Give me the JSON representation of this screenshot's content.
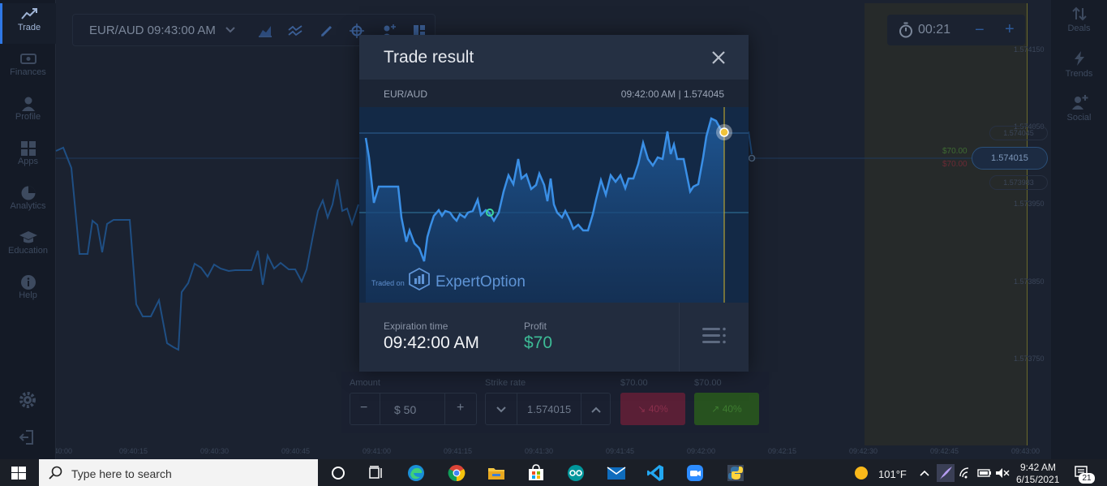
{
  "sidebar": {
    "items": [
      {
        "label": "Trade",
        "icon": "chart-trend-icon"
      },
      {
        "label": "Finances",
        "icon": "wallet-icon"
      },
      {
        "label": "Profile",
        "icon": "user-icon"
      },
      {
        "label": "Apps",
        "icon": "grid-icon"
      },
      {
        "label": "Analytics",
        "icon": "pie-chart-icon"
      },
      {
        "label": "Education",
        "icon": "graduation-cap-icon"
      },
      {
        "label": "Help",
        "icon": "info-icon"
      }
    ]
  },
  "rightbar": {
    "items": [
      {
        "label": "Deals",
        "icon": "sort-arrows-icon"
      },
      {
        "label": "Trends",
        "icon": "lightning-icon"
      },
      {
        "label": "Social",
        "icon": "add-user-icon"
      }
    ]
  },
  "toolbar": {
    "asset": "EUR/AUD 09:43:00 AM"
  },
  "timer": {
    "value": "00:21",
    "minus": "−",
    "plus": "+"
  },
  "price_axis": [
    "1.574150",
    "1.574050",
    "1.573950",
    "1.573850",
    "1.573750"
  ],
  "time_axis": [
    "09:40:00",
    "09:40:15",
    "09:40:30",
    "09:40:45",
    "09:41:00",
    "09:41:15",
    "09:41:30",
    "09:41:45",
    "09:42:00",
    "09:42:15",
    "09:42:30",
    "09:42:45",
    "09:43:00"
  ],
  "price_side": {
    "current": "1.574015",
    "upper_pill": "1.574045",
    "lower_pill": "1.573983",
    "green_amount": "$70.00",
    "red_amount": "$70.00"
  },
  "trade_panel": {
    "amount_label": "Amount",
    "amount_value": "$ 50",
    "strike_label": "Strike rate",
    "strike_value": "1.574015",
    "down_payout_label": "$70.00",
    "up_payout_label": "$70.00",
    "down_percent": "40%",
    "up_percent": "40%",
    "minus": "−",
    "plus": "+"
  },
  "modal": {
    "title": "Trade result",
    "asset": "EUR/AUD",
    "time_price": "09:42:00 AM | 1.574045",
    "traded_on": "Traded on",
    "brand": "ExpertOption",
    "expiration_label": "Expiration time",
    "expiration_value": "09:42:00 AM",
    "profit_label": "Profit",
    "profit_value": "$70"
  },
  "taskbar": {
    "search_placeholder": "Type here to search",
    "weather": "101°F",
    "time": "9:42 AM",
    "date": "6/15/2021",
    "notifications": "21"
  },
  "colors": {
    "accent": "#2f78e6",
    "profit": "#3dbb96",
    "chart_line": "#3a8fe6"
  }
}
